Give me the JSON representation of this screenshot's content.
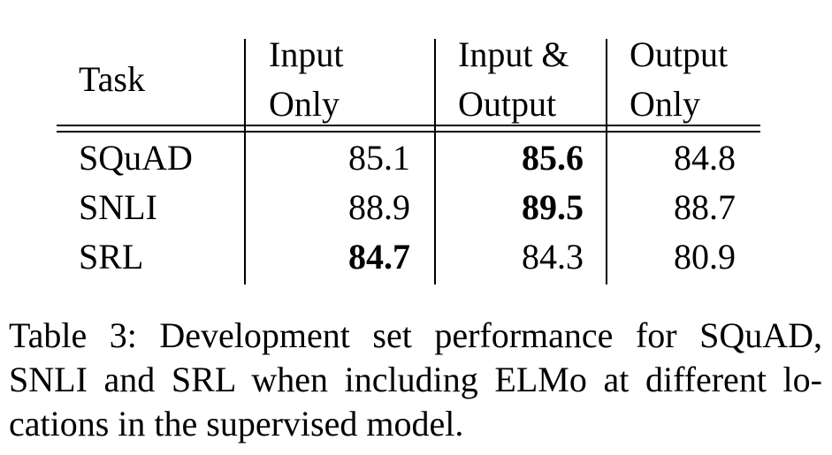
{
  "table": {
    "header": {
      "task": "Task",
      "col1_line1": "Input",
      "col1_line2": "Only",
      "col2_line1": "Input &",
      "col2_line2": "Output",
      "col3_line1": "Output",
      "col3_line2": "Only"
    },
    "rows": [
      {
        "task": "SQuAD",
        "input_only": "85.1",
        "input_output": "85.6",
        "output_only": "84.8",
        "bold": "input_output"
      },
      {
        "task": "SNLI",
        "input_only": "88.9",
        "input_output": "89.5",
        "output_only": "88.7",
        "bold": "input_output"
      },
      {
        "task": "SRL",
        "input_only": "84.7",
        "input_output": "84.3",
        "output_only": "80.9",
        "bold": "input_only"
      }
    ]
  },
  "caption": {
    "line1": "Table 3:  Development set performance for SQuAD,",
    "line2": "SNLI and SRL when including ELMo at different lo-",
    "line3": "cations in the supervised model."
  }
}
